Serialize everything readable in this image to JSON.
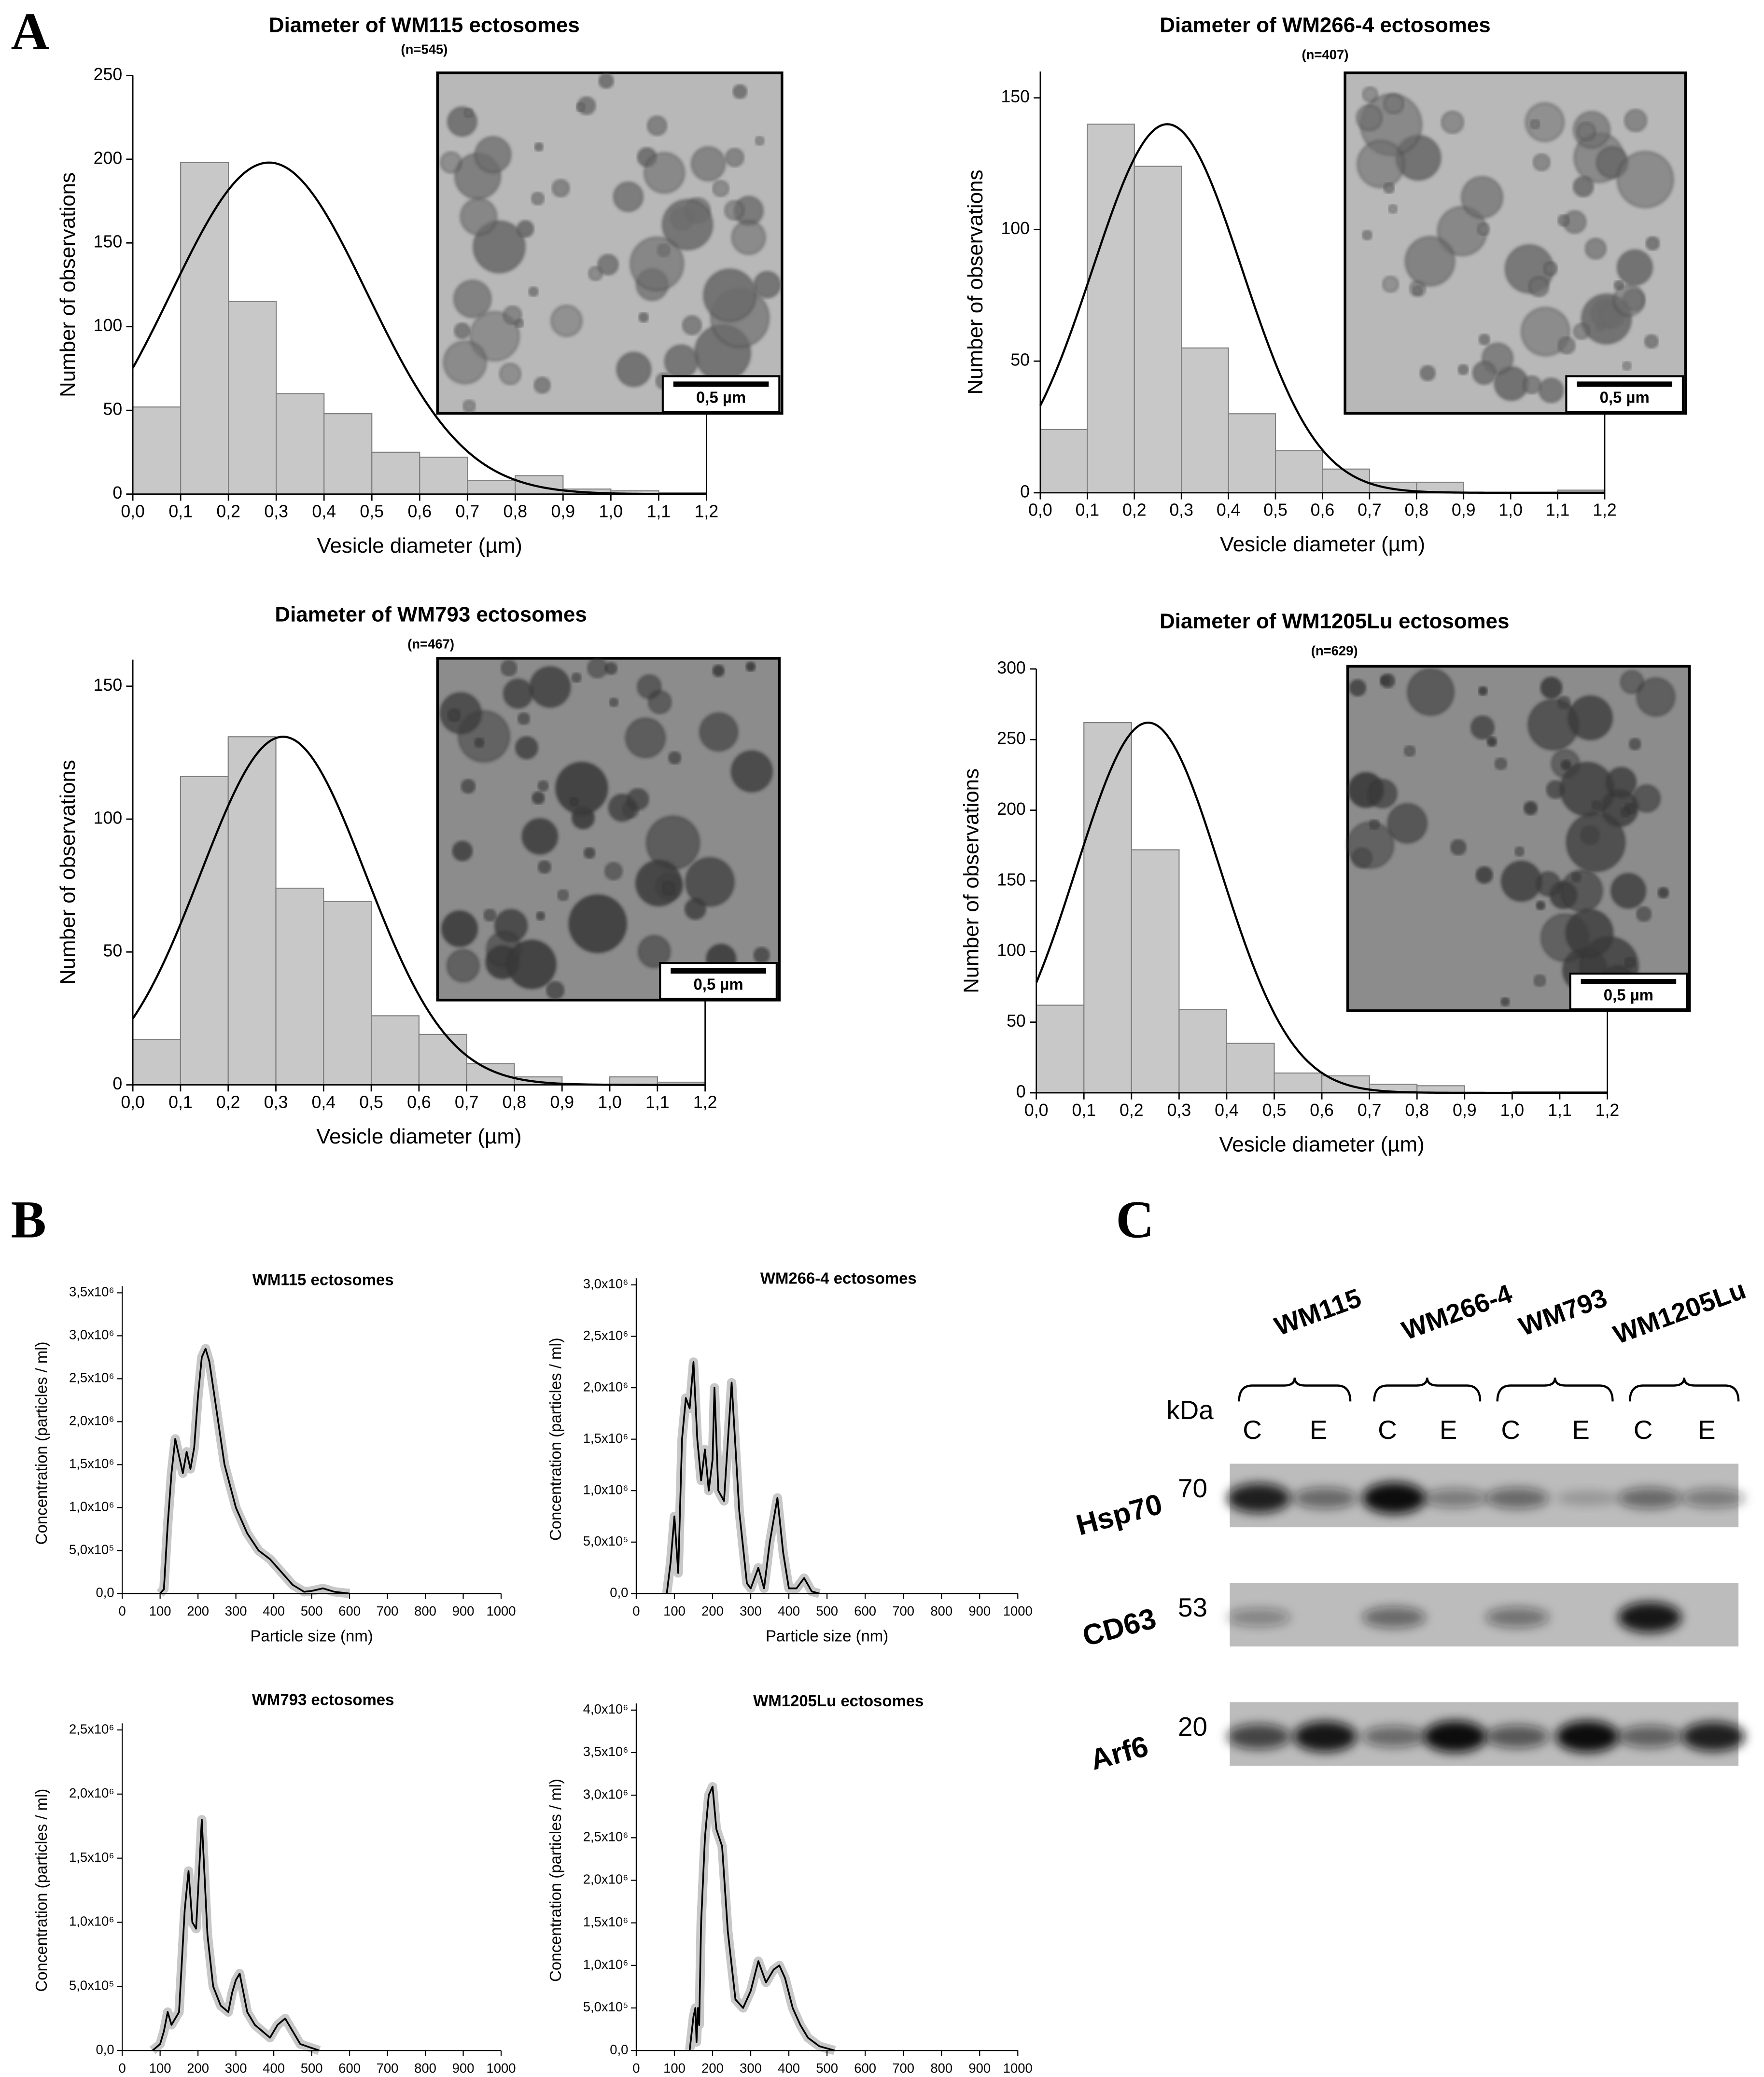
{
  "panel_labels": [
    "A",
    "B"
  ],
  "chart_data": [
    {
      "type": "histogram",
      "title": "Diameter of WM115 ectosomes",
      "subtitle": "(n=545)",
      "x_label": "Vesicle diameter (µm)",
      "y_label": "Number of observations",
      "color": "#c8c8c8",
      "bins": [
        0,
        0.1,
        0.2,
        0.3,
        0.4,
        0.5,
        0.6,
        0.7,
        0.8,
        0.9,
        1.0,
        1.1,
        1.2
      ],
      "values": [
        52,
        198,
        115,
        60,
        48,
        25,
        22,
        8,
        11,
        3,
        2,
        1
      ],
      "fit": {
        "type": "normal",
        "peak": 198,
        "mean": 0.285,
        "sd": 0.205
      },
      "xlim": [
        0,
        1.2
      ],
      "xticks": [
        {
          "value": 0,
          "label": "0,0"
        },
        {
          "value": 0.1,
          "label": "0,1"
        },
        {
          "value": 0.2,
          "label": "0,2"
        },
        {
          "value": 0.3,
          "label": "0,3"
        },
        {
          "value": 0.4,
          "label": "0,4"
        },
        {
          "value": 0.5,
          "label": "0,5"
        },
        {
          "value": 0.6,
          "label": "0,6"
        },
        {
          "value": 0.7,
          "label": "0,7"
        },
        {
          "value": 0.8,
          "label": "0,8"
        },
        {
          "value": 0.9,
          "label": "0,9"
        },
        {
          "value": 1.0,
          "label": "1,0"
        },
        {
          "value": 1.1,
          "label": "1,1"
        },
        {
          "value": 1.2,
          "label": "1,2"
        }
      ],
      "ylim": [
        0,
        250
      ],
      "yticks": [
        0,
        50,
        100,
        150,
        200,
        250
      ],
      "inset_scale_label": "0,5 µm"
    },
    {
      "type": "histogram",
      "title": "Diameter of WM266-4 ectosomes",
      "subtitle": "(n=407)",
      "x_label": "Vesicle diameter (µm)",
      "y_label": "Number of observations",
      "color": "#c8c8c8",
      "bins": [
        0,
        0.1,
        0.2,
        0.3,
        0.4,
        0.5,
        0.6,
        0.7,
        0.8,
        0.9,
        1.0,
        1.1,
        1.2
      ],
      "values": [
        24,
        140,
        124,
        55,
        30,
        16,
        9,
        4,
        4,
        0,
        0,
        1
      ],
      "fit": {
        "type": "normal",
        "peak": 140,
        "mean": 0.27,
        "sd": 0.159
      },
      "xlim": [
        0,
        1.2
      ],
      "xticks": [
        {
          "value": 0,
          "label": "0,0"
        },
        {
          "value": 0.1,
          "label": "0,1"
        },
        {
          "value": 0.2,
          "label": "0,2"
        },
        {
          "value": 0.3,
          "label": "0,3"
        },
        {
          "value": 0.4,
          "label": "0,4"
        },
        {
          "value": 0.5,
          "label": "0,5"
        },
        {
          "value": 0.6,
          "label": "0,6"
        },
        {
          "value": 0.7,
          "label": "0,7"
        },
        {
          "value": 0.8,
          "label": "0,8"
        },
        {
          "value": 0.9,
          "label": "0,9"
        },
        {
          "value": 1.0,
          "label": "1,0"
        },
        {
          "value": 1.1,
          "label": "1,1"
        },
        {
          "value": 1.2,
          "label": "1,2"
        }
      ],
      "ylim": [
        0,
        160
      ],
      "yticks": [
        0,
        50,
        100,
        150
      ],
      "inset_scale_label": "0,5 µm"
    },
    {
      "type": "histogram",
      "title": "Diameter of WM793 ectosomes",
      "subtitle": "(n=467)",
      "x_label": "Vesicle diameter (µm)",
      "y_label": "Number of observations",
      "color": "#c8c8c8",
      "bins": [
        0,
        0.1,
        0.2,
        0.3,
        0.4,
        0.5,
        0.6,
        0.7,
        0.8,
        0.9,
        1.0,
        1.1,
        1.2
      ],
      "values": [
        17,
        116,
        131,
        74,
        69,
        26,
        19,
        8,
        3,
        0,
        3,
        1
      ],
      "fit": {
        "type": "normal",
        "peak": 131,
        "mean": 0.315,
        "sd": 0.173
      },
      "xlim": [
        0,
        1.2
      ],
      "xticks": [
        {
          "value": 0,
          "label": "0,0"
        },
        {
          "value": 0.1,
          "label": "0,1"
        },
        {
          "value": 0.2,
          "label": "0,2"
        },
        {
          "value": 0.3,
          "label": "0,3"
        },
        {
          "value": 0.4,
          "label": "0,4"
        },
        {
          "value": 0.5,
          "label": "0,5"
        },
        {
          "value": 0.6,
          "label": "0,6"
        },
        {
          "value": 0.7,
          "label": "0,7"
        },
        {
          "value": 0.8,
          "label": "0,8"
        },
        {
          "value": 0.9,
          "label": "0,9"
        },
        {
          "value": 1.0,
          "label": "1,0"
        },
        {
          "value": 1.1,
          "label": "1,1"
        },
        {
          "value": 1.2,
          "label": "1,2"
        }
      ],
      "ylim": [
        0,
        160
      ],
      "yticks": [
        0,
        50,
        100,
        150
      ],
      "inset_scale_label": "0,5 µm"
    },
    {
      "type": "histogram",
      "title": "Diameter of WM1205Lu ectosomes",
      "subtitle": "(n=629)",
      "x_label": "Vesicle diameter (µm)",
      "y_label": "Number of observations",
      "color": "#c8c8c8",
      "bins": [
        0,
        0.1,
        0.2,
        0.3,
        0.4,
        0.5,
        0.6,
        0.7,
        0.8,
        0.9,
        1.0,
        1.1,
        1.2
      ],
      "values": [
        62,
        262,
        172,
        59,
        35,
        14,
        12,
        6,
        5,
        0,
        1,
        1
      ],
      "fit": {
        "type": "normal",
        "peak": 262,
        "mean": 0.235,
        "sd": 0.151
      },
      "xlim": [
        0,
        1.2
      ],
      "xticks": [
        {
          "value": 0,
          "label": "0,0"
        },
        {
          "value": 0.1,
          "label": "0,1"
        },
        {
          "value": 0.2,
          "label": "0,2"
        },
        {
          "value": 0.3,
          "label": "0,3"
        },
        {
          "value": 0.4,
          "label": "0,4"
        },
        {
          "value": 0.5,
          "label": "0,5"
        },
        {
          "value": 0.6,
          "label": "0,6"
        },
        {
          "value": 0.7,
          "label": "0,7"
        },
        {
          "value": 0.8,
          "label": "0,8"
        },
        {
          "value": 0.9,
          "label": "0,9"
        },
        {
          "value": 1.0,
          "label": "1,0"
        },
        {
          "value": 1.1,
          "label": "1,1"
        },
        {
          "value": 1.2,
          "label": "1,2"
        }
      ],
      "ylim": [
        0,
        300
      ],
      "yticks": [
        0,
        50,
        100,
        150,
        200,
        250,
        300
      ],
      "inset_scale_label": "0,5 µm"
    },
    {
      "type": "line",
      "title": "WM115 ectosomes",
      "x_label": "Particle size (nm)",
      "y_label": "Concentration (particles / ml)",
      "color": "#000000",
      "x": [
        100,
        110,
        120,
        130,
        140,
        150,
        160,
        170,
        180,
        190,
        200,
        210,
        220,
        230,
        250,
        270,
        300,
        330,
        360,
        390,
        420,
        450,
        480,
        500,
        530,
        560,
        600
      ],
      "values": [
        0,
        50000,
        800000,
        1400000,
        1800000,
        1600000,
        1400000,
        1650000,
        1450000,
        1700000,
        2300000,
        2750000,
        2850000,
        2700000,
        2100000,
        1500000,
        1000000,
        700000,
        500000,
        400000,
        250000,
        100000,
        20000,
        30000,
        60000,
        20000,
        0
      ],
      "xlim": [
        0,
        1000
      ],
      "xticks": [
        0,
        100,
        200,
        300,
        400,
        500,
        600,
        700,
        800,
        900,
        1000
      ],
      "ylim": [
        0,
        3500000
      ],
      "yticks": [
        {
          "value": 0,
          "label": "0,0"
        },
        {
          "value": 500000,
          "label": "5,0x10⁵"
        },
        {
          "value": 1000000,
          "label": "1,0x10⁶"
        },
        {
          "value": 1500000,
          "label": "1,5x10⁶"
        },
        {
          "value": 2000000,
          "label": "2,0x10⁶"
        },
        {
          "value": 2500000,
          "label": "2,5x10⁶"
        },
        {
          "value": 3000000,
          "label": "3,0x10⁶"
        },
        {
          "value": 3500000,
          "label": "3,5x10⁶"
        }
      ]
    },
    {
      "type": "line",
      "title": "WM266-4 ectosomes",
      "x_label": "Particle size (nm)",
      "y_label": "Concentration (particles / ml)",
      "color": "#000000",
      "x": [
        80,
        90,
        100,
        110,
        120,
        130,
        140,
        150,
        160,
        170,
        180,
        190,
        200,
        205,
        215,
        230,
        250,
        270,
        290,
        300,
        320,
        335,
        350,
        370,
        385,
        400,
        420,
        440,
        460,
        480
      ],
      "values": [
        0,
        300000,
        750000,
        200000,
        1500000,
        1900000,
        1800000,
        2250000,
        1500000,
        1100000,
        1400000,
        1000000,
        1300000,
        2000000,
        1000000,
        900000,
        2050000,
        800000,
        100000,
        50000,
        250000,
        50000,
        500000,
        930000,
        400000,
        50000,
        50000,
        150000,
        20000,
        0
      ],
      "xlim": [
        0,
        1000
      ],
      "xticks": [
        0,
        100,
        200,
        300,
        400,
        500,
        600,
        700,
        800,
        900,
        1000
      ],
      "ylim": [
        0,
        3000000
      ],
      "yticks": [
        {
          "value": 0,
          "label": "0,0"
        },
        {
          "value": 500000,
          "label": "5,0x10⁵"
        },
        {
          "value": 1000000,
          "label": "1,0x10⁶"
        },
        {
          "value": 1500000,
          "label": "1,5x10⁶"
        },
        {
          "value": 2000000,
          "label": "2,0x10⁶"
        },
        {
          "value": 2500000,
          "label": "2,5x10⁶"
        },
        {
          "value": 3000000,
          "label": "3,0x10⁶"
        }
      ]
    },
    {
      "type": "line",
      "title": "WM793 ectosomes",
      "x_label": "Particle size (nm)",
      "y_label": "Concentration (particles / ml)",
      "color": "#000000",
      "x": [
        80,
        100,
        110,
        120,
        130,
        150,
        165,
        175,
        185,
        195,
        210,
        225,
        240,
        260,
        280,
        290,
        300,
        310,
        330,
        350,
        370,
        390,
        410,
        430,
        450,
        470,
        500,
        520
      ],
      "values": [
        0,
        50000,
        150000,
        300000,
        200000,
        300000,
        1100000,
        1400000,
        1000000,
        950000,
        1800000,
        900000,
        500000,
        350000,
        300000,
        450000,
        550000,
        600000,
        300000,
        200000,
        150000,
        100000,
        200000,
        250000,
        150000,
        50000,
        20000,
        0
      ],
      "xlim": [
        0,
        1000
      ],
      "xticks": [
        0,
        100,
        200,
        300,
        400,
        500,
        600,
        700,
        800,
        900,
        1000
      ],
      "ylim": [
        0,
        2500000
      ],
      "yticks": [
        {
          "value": 0,
          "label": "0,0"
        },
        {
          "value": 500000,
          "label": "5,0x10⁵"
        },
        {
          "value": 1000000,
          "label": "1,0x10⁶"
        },
        {
          "value": 1500000,
          "label": "1,5x10⁶"
        },
        {
          "value": 2000000,
          "label": "2,0x10⁶"
        },
        {
          "value": 2500000,
          "label": "2,5x10⁶"
        }
      ]
    },
    {
      "type": "line",
      "title": "WM1205Lu ectosomes",
      "x_label": "Particle size (nm)",
      "y_label": "Concentration (particles / ml)",
      "color": "#000000",
      "x": [
        140,
        150,
        155,
        158,
        162,
        165,
        170,
        180,
        190,
        200,
        210,
        225,
        240,
        260,
        280,
        300,
        320,
        340,
        360,
        375,
        390,
        410,
        430,
        450,
        480,
        520
      ],
      "values": [
        0,
        400000,
        500000,
        100000,
        500000,
        300000,
        1500000,
        2500000,
        3000000,
        3100000,
        2600000,
        2400000,
        1400000,
        600000,
        500000,
        700000,
        1050000,
        800000,
        950000,
        1000000,
        850000,
        500000,
        300000,
        150000,
        50000,
        0
      ],
      "xlim": [
        0,
        1000
      ],
      "xticks": [
        0,
        100,
        200,
        300,
        400,
        500,
        600,
        700,
        800,
        900,
        1000
      ],
      "ylim": [
        0,
        4000000
      ],
      "yticks": [
        {
          "value": 0,
          "label": "0,0"
        },
        {
          "value": 500000,
          "label": "5,0x10⁵"
        },
        {
          "value": 1000000,
          "label": "1,0x10⁶"
        },
        {
          "value": 1500000,
          "label": "1,5x10⁶"
        },
        {
          "value": 2000000,
          "label": "2,0x10⁶"
        },
        {
          "value": 2500000,
          "label": "2,5x10⁶"
        },
        {
          "value": 3000000,
          "label": "3,0x10⁶"
        },
        {
          "value": 3500000,
          "label": "3,5x10⁶"
        },
        {
          "value": 4000000,
          "label": "4,0x10⁶"
        }
      ]
    }
  ],
  "blot": {
    "panel": "C",
    "groups": [
      "WM115",
      "WM266-4",
      "WM793",
      "WM1205Lu"
    ],
    "lanes": [
      "C",
      "E",
      "C",
      "E",
      "C",
      "E",
      "C",
      "E"
    ],
    "kda_label": "kDa",
    "rows": [
      {
        "protein": "Hsp70",
        "kda": 70
      },
      {
        "protein": "CD63",
        "kda": 53
      },
      {
        "protein": "Arf6",
        "kda": 20
      }
    ]
  }
}
